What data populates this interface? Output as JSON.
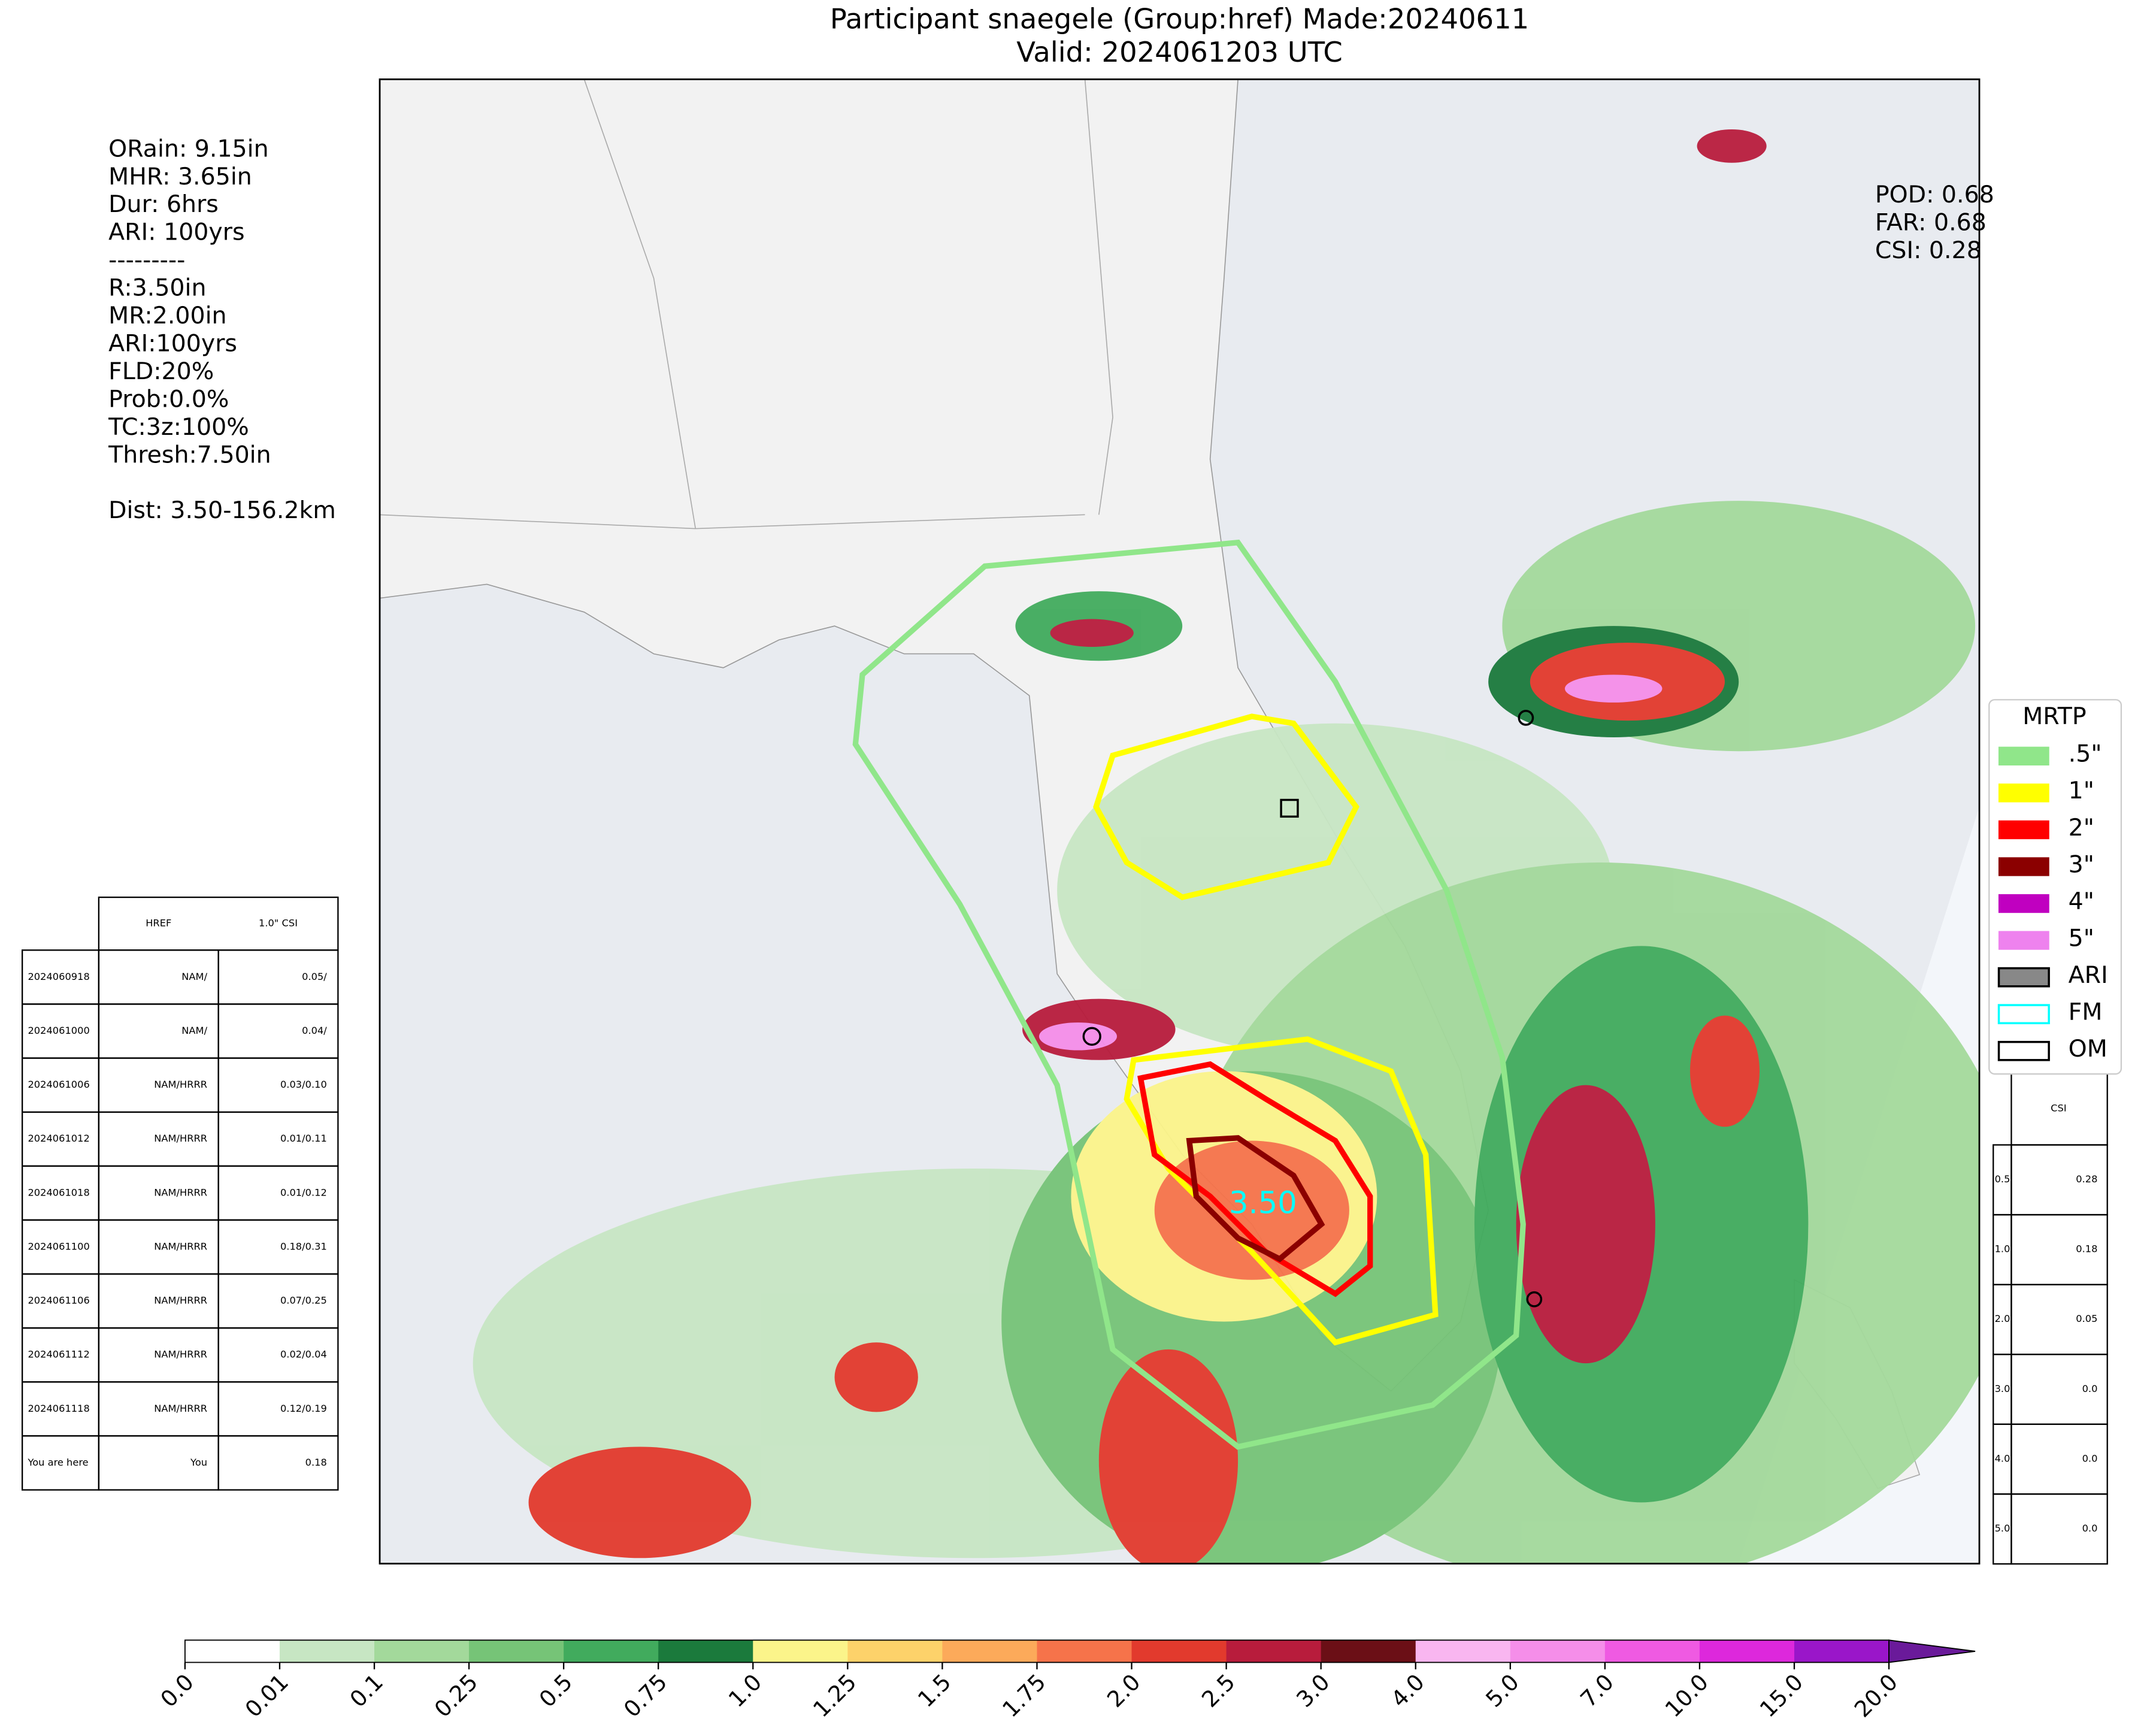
{
  "title": [
    "Participant snaegele (Group:href) Made:20240611",
    "Valid: 2024061203 UTC"
  ],
  "left_stats": [
    "ORain: 9.15in",
    "MHR: 3.65in",
    "Dur: 6hrs",
    "ARI: 100yrs",
    "---------",
    "R:3.50in",
    "MR:2.00in",
    "ARI:100yrs",
    "FLD:20%",
    "Prob:0.0%",
    "TC:3z:100%",
    "Thresh:7.50in",
    "Dist: 3.50-156.2km"
  ],
  "right_stats": [
    "POD: 0.68",
    "FAR: 0.68",
    "CSI: 0.28"
  ],
  "map_label": "3.50",
  "left_table": {
    "header": [
      "HREF",
      "1.0\" CSI"
    ],
    "rows": [
      [
        "2024060918",
        "NAM/",
        "0.05/"
      ],
      [
        "2024061000",
        "NAM/",
        "0.04/"
      ],
      [
        "2024061006",
        "NAM/HRRR",
        "0.03/0.10"
      ],
      [
        "2024061012",
        "NAM/HRRR",
        "0.01/0.11"
      ],
      [
        "2024061018",
        "NAM/HRRR",
        "0.01/0.12"
      ],
      [
        "2024061100",
        "NAM/HRRR",
        "0.18/0.31"
      ],
      [
        "2024061106",
        "NAM/HRRR",
        "0.07/0.25"
      ],
      [
        "2024061112",
        "NAM/HRRR",
        "0.02/0.04"
      ],
      [
        "2024061118",
        "NAM/HRRR",
        "0.12/0.19"
      ],
      [
        "You are here",
        "You",
        "0.18"
      ]
    ]
  },
  "right_table": {
    "header": "CSI",
    "rows": [
      [
        "0.5",
        "0.28"
      ],
      [
        "1.0",
        "0.18"
      ],
      [
        "2.0",
        "0.05"
      ],
      [
        "3.0",
        "0.0"
      ],
      [
        "4.0",
        "0.0"
      ],
      [
        "5.0",
        "0.0"
      ]
    ]
  },
  "legend": {
    "title": "MRTP",
    "items": [
      {
        "label": ".5\"",
        "color": "#90e68a"
      },
      {
        "label": "1\"",
        "color": "#ffff00"
      },
      {
        "label": "2\"",
        "color": "#ff0000"
      },
      {
        "label": "3\"",
        "color": "#8b0000"
      },
      {
        "label": "4\"",
        "color": "#c000c0"
      },
      {
        "label": "5\"",
        "color": "#ee82ee"
      },
      {
        "label": "ARI",
        "color": "#888888"
      },
      {
        "label": "FM",
        "color": "#ffffff"
      },
      {
        "label": "OM",
        "color": "#ffffff"
      }
    ]
  },
  "colorbar": {
    "labels": [
      "0.0",
      "0.01",
      "0.1",
      "0.25",
      "0.5",
      "0.75",
      "1.0",
      "1.25",
      "1.5",
      "1.75",
      "2.0",
      "2.5",
      "3.0",
      "4.0",
      "5.0",
      "7.0",
      "10.0",
      "15.0",
      "20.0"
    ],
    "colors": [
      "#ffffff",
      "#c7e6c3",
      "#a3d99b",
      "#76c477",
      "#41ab5d",
      "#1b7a3c",
      "#fbf48a",
      "#fdd26a",
      "#fcaa5a",
      "#f6734a",
      "#e23a2d",
      "#b81c3c",
      "#6b0f16",
      "#f9b6f0",
      "#f58ee9",
      "#ef5ae2",
      "#dd28dc",
      "#9a16c9"
    ],
    "extend_color": "#6a1a9a"
  }
}
